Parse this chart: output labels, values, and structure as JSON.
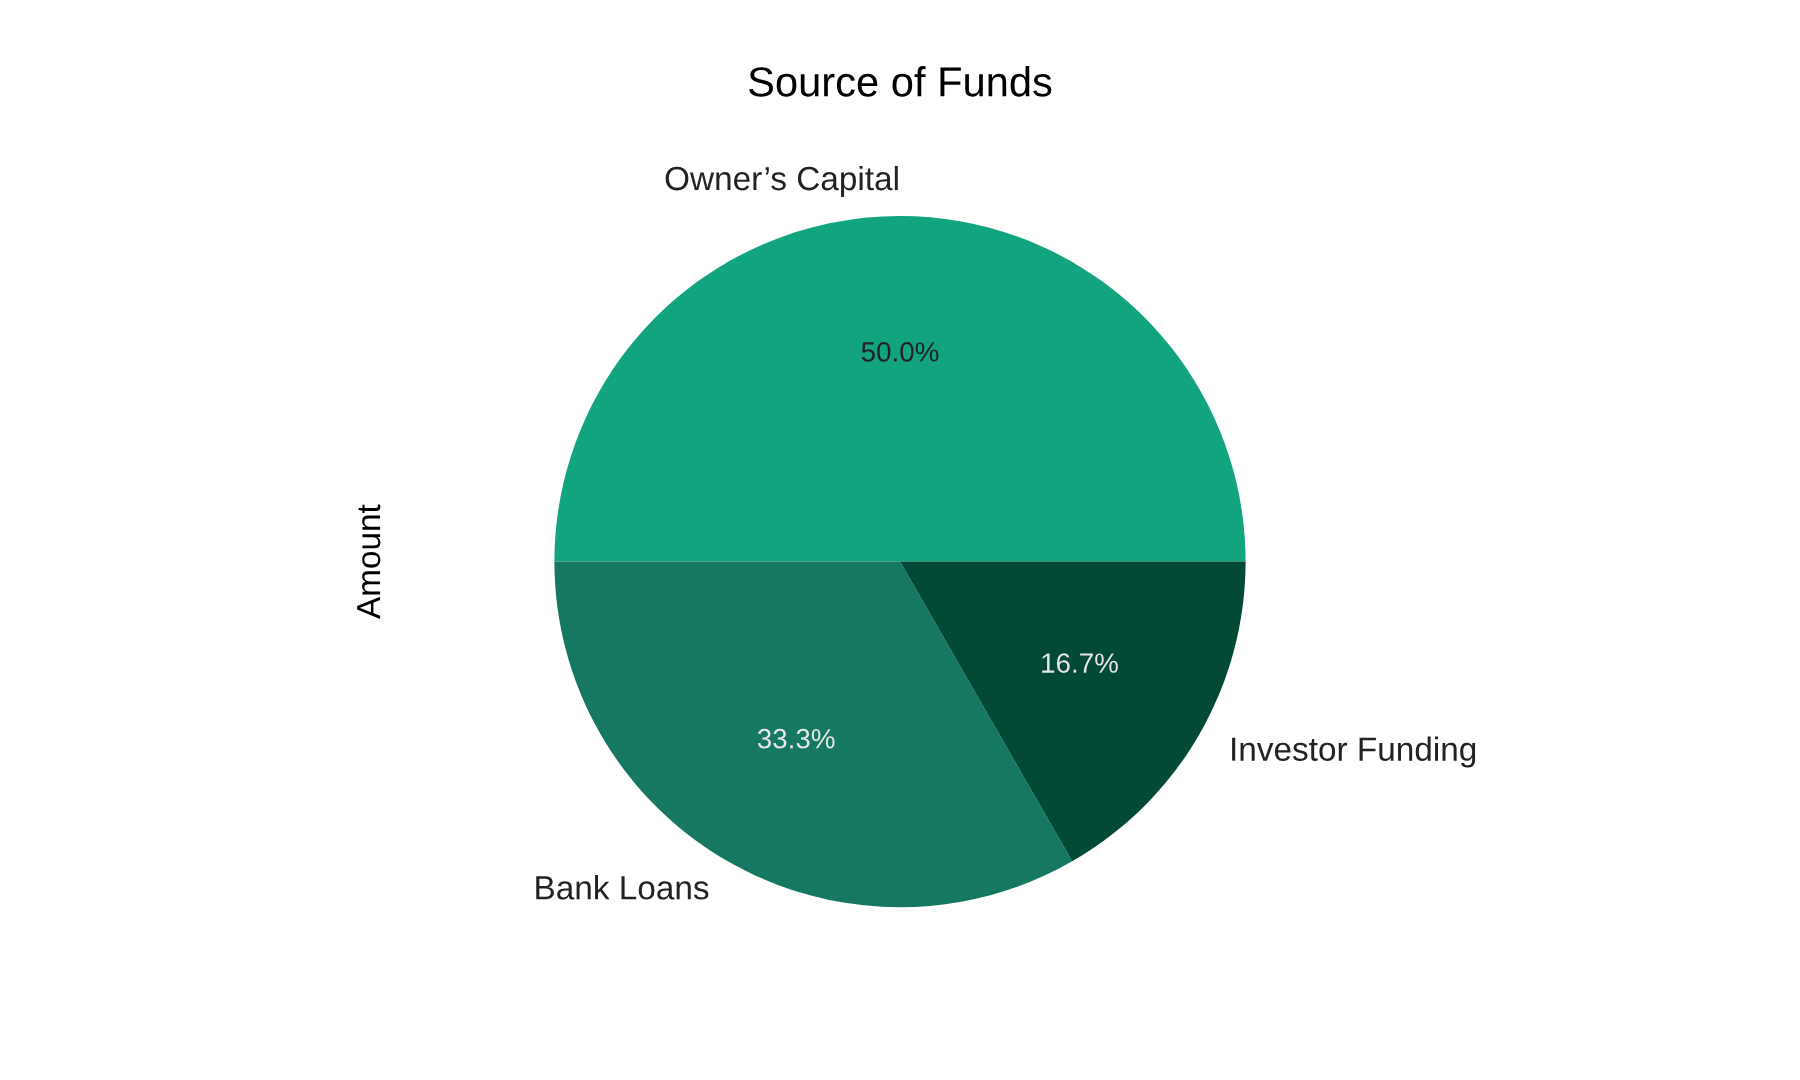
{
  "chart_data": {
    "type": "pie",
    "title": "Source of Funds",
    "ylabel": "Amount",
    "categories": [
      "Owner’s Capital",
      "Bank Loans",
      "Investor Funding"
    ],
    "values": [
      50.0,
      33.3,
      16.7
    ],
    "value_labels": [
      "50.0%",
      "33.3%",
      "16.7%"
    ],
    "colors": [
      "#12a47f",
      "#167861",
      "#034a36"
    ]
  }
}
